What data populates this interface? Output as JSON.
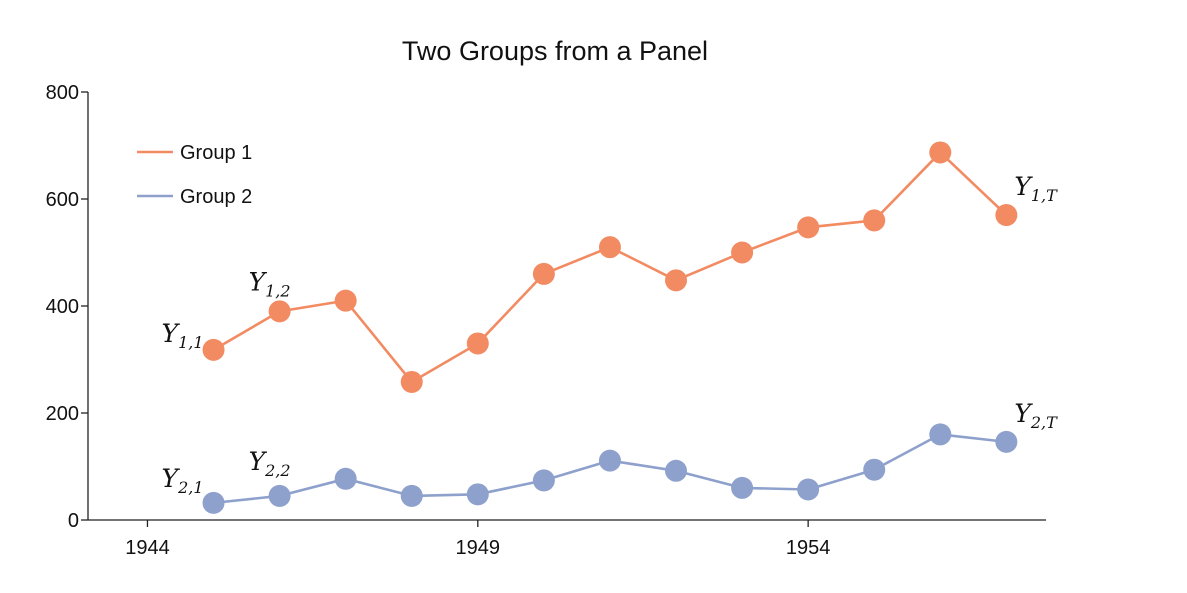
{
  "chart_data": {
    "type": "line",
    "title": "Two Groups from a Panel",
    "xlabel": "",
    "ylabel": "",
    "x": [
      1945,
      1946,
      1947,
      1948,
      1949,
      1950,
      1951,
      1952,
      1953,
      1954,
      1955,
      1956,
      1957
    ],
    "xlim": [
      1943.1,
      1957.6
    ],
    "ylim": [
      0,
      800
    ],
    "x_ticks": [
      1944,
      1949,
      1954
    ],
    "y_ticks": [
      0,
      200,
      400,
      600,
      800
    ],
    "grid": false,
    "legend_position": "top-left",
    "series": [
      {
        "name": "Group 1",
        "color": "#f28b62",
        "values": [
          318,
          390,
          410,
          258,
          330,
          460,
          510,
          448,
          500,
          547,
          560,
          687,
          570
        ]
      },
      {
        "name": "Group 2",
        "color": "#8ea0cc",
        "values": [
          32,
          45,
          77,
          45,
          48,
          74,
          111,
          92,
          60,
          57,
          94,
          160,
          146
        ]
      }
    ],
    "annotations": [
      {
        "series": 0,
        "point": 0,
        "base": "Y",
        "sub": "1,1"
      },
      {
        "series": 0,
        "point": 1,
        "base": "Y",
        "sub": "1,2"
      },
      {
        "series": 0,
        "point": 12,
        "base": "Y",
        "sub": "1,T"
      },
      {
        "series": 1,
        "point": 0,
        "base": "Y",
        "sub": "2,1"
      },
      {
        "series": 1,
        "point": 1,
        "base": "Y",
        "sub": "2,2"
      },
      {
        "series": 1,
        "point": 12,
        "base": "Y",
        "sub": "2,T"
      }
    ]
  }
}
